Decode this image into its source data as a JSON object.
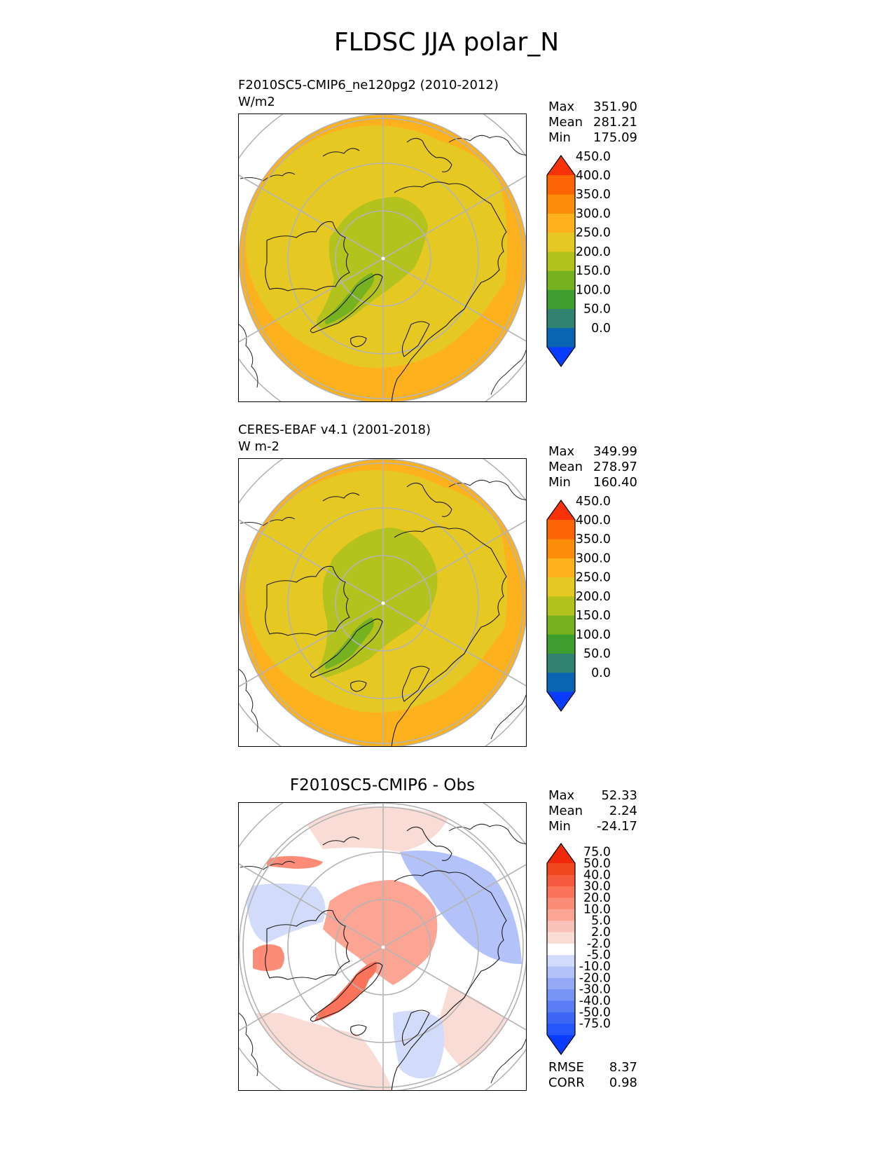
{
  "figure": {
    "title": "FLDSC JJA polar_N"
  },
  "panels": [
    {
      "name": "test",
      "title": "",
      "line1": "F2010SC5-CMIP6_ne120pg2 (2010-2012)",
      "line2": "W/m2",
      "stats": [
        {
          "label": "Max",
          "value": "351.90"
        },
        {
          "label": "Mean",
          "value": "281.21"
        },
        {
          "label": "Min",
          "value": "175.09"
        }
      ]
    },
    {
      "name": "reference",
      "title": "",
      "line1": "CERES-EBAF v4.1 (2001-2018)",
      "line2": "W m-2",
      "stats": [
        {
          "label": "Max",
          "value": "349.99"
        },
        {
          "label": "Mean",
          "value": "278.97"
        },
        {
          "label": "Min",
          "value": "160.40"
        }
      ]
    },
    {
      "name": "difference",
      "title": "F2010SC5-CMIP6 - Obs",
      "line1": "",
      "line2": "",
      "stats": [
        {
          "label": "Max",
          "value": "52.33"
        },
        {
          "label": "Mean",
          "value": "2.24"
        },
        {
          "label": "Min",
          "value": "-24.17"
        }
      ],
      "metrics": [
        {
          "label": "RMSE",
          "value": "8.37"
        },
        {
          "label": "CORR",
          "value": "0.98"
        }
      ]
    }
  ],
  "chart_data": [
    {
      "type": "heatmap",
      "projection": "north-polar-stereographic",
      "title": "F2010SC5-CMIP6_ne120pg2 (2010-2012)",
      "units": "W/m2",
      "max": 351.9,
      "mean": 281.21,
      "min": 175.09,
      "colorbar": {
        "levels": [
          "0.0",
          "50.0",
          "100.0",
          "150.0",
          "200.0",
          "250.0",
          "300.0",
          "350.0",
          "400.0",
          "450.0"
        ],
        "colors": [
          "#0a3cff",
          "#0a64b4",
          "#2e8470",
          "#3d9e2e",
          "#76b120",
          "#b4c21e",
          "#e6c823",
          "#fcb11d",
          "#fc8c0a",
          "#fc6406",
          "#fa320a"
        ],
        "extend": "both"
      }
    },
    {
      "type": "heatmap",
      "projection": "north-polar-stereographic",
      "title": "CERES-EBAF v4.1 (2001-2018)",
      "units": "W m-2",
      "max": 349.99,
      "mean": 278.97,
      "min": 160.4,
      "colorbar": {
        "levels": [
          "0.0",
          "50.0",
          "100.0",
          "150.0",
          "200.0",
          "250.0",
          "300.0",
          "350.0",
          "400.0",
          "450.0"
        ],
        "colors": [
          "#0a3cff",
          "#0a64b4",
          "#2e8470",
          "#3d9e2e",
          "#76b120",
          "#b4c21e",
          "#e6c823",
          "#fcb11d",
          "#fc8c0a",
          "#fc6406",
          "#fa320a"
        ],
        "extend": "both"
      }
    },
    {
      "type": "heatmap",
      "projection": "north-polar-stereographic",
      "title": "F2010SC5-CMIP6 - Obs",
      "max": 52.33,
      "mean": 2.24,
      "min": -24.17,
      "rmse": 8.37,
      "corr": 0.98,
      "colorbar": {
        "levels": [
          "-75.0",
          "-50.0",
          "-40.0",
          "-30.0",
          "-20.0",
          "-10.0",
          "-5.0",
          "-2.0",
          "2.0",
          "5.0",
          "10.0",
          "20.0",
          "30.0",
          "40.0",
          "50.0",
          "75.0"
        ],
        "colors": [
          "#0a3cff",
          "#2556fa",
          "#3d66f5",
          "#5a7df5",
          "#7894f5",
          "#96a9f7",
          "#b4c2fa",
          "#d2dbfa",
          "#ffffff",
          "#fadcd7",
          "#fac3b9",
          "#fca594",
          "#fc8c78",
          "#fa735a",
          "#f55a3c",
          "#f0461e",
          "#f0280a"
        ],
        "extend": "both"
      }
    }
  ]
}
